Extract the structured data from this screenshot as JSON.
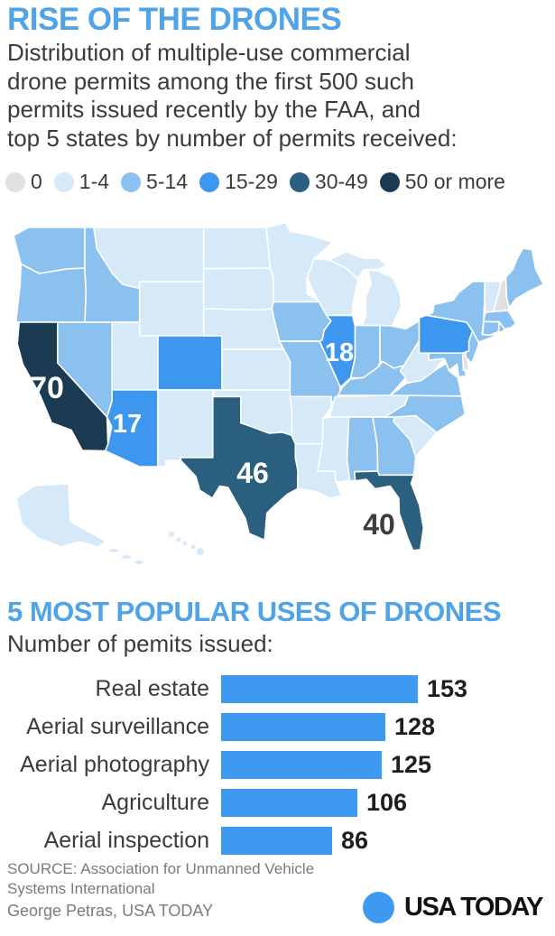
{
  "header": {
    "title": "RISE OF THE DRONES",
    "subtitle": "Distribution of multiple-use commercial\ndrone permits among the first 500 such\npermits issued recently by the FAA, and\ntop 5 states by number of permits received:"
  },
  "theme": {
    "headline_blue": "#4FA3E9",
    "bar_blue": "#3D9AF0",
    "text_dark": "#3B3B3B",
    "text_gray": "#7B7B7B",
    "value_black": "#1E1E1E"
  },
  "chart_data": [
    {
      "type": "heatmap",
      "subtype": "us-state-choropleth",
      "title": "RISE OF THE DRONES",
      "description": "Distribution of multiple-use commercial drone permits among the first 500 such permits issued recently by the FAA, and top 5 states by number of permits received:",
      "legend_position": "top",
      "legend": [
        {
          "label": "0",
          "color": "#E1E1E1"
        },
        {
          "label": "1-4",
          "color": "#D5E9F9"
        },
        {
          "label": "5-14",
          "color": "#8AC1EF"
        },
        {
          "label": "15-29",
          "color": "#3E97EF"
        },
        {
          "label": "30-49",
          "color": "#2B5F80"
        },
        {
          "label": "50 or more",
          "color": "#1A3B52"
        }
      ],
      "state_buckets": {
        "WA": "5-14",
        "OR": "5-14",
        "CA": "50 or more",
        "NV": "5-14",
        "ID": "5-14",
        "MT": "1-4",
        "WY": "1-4",
        "UT": "1-4",
        "CO": "15-29",
        "AZ": "15-29",
        "NM": "1-4",
        "ND": "1-4",
        "SD": "1-4",
        "NE": "1-4",
        "KS": "1-4",
        "OK": "1-4",
        "TX": "30-49",
        "MN": "1-4",
        "IA": "5-14",
        "MO": "5-14",
        "AR": "1-4",
        "LA": "1-4",
        "WI": "1-4",
        "IL": "15-29",
        "MI": "1-4",
        "IN": "5-14",
        "OH": "5-14",
        "KY": "5-14",
        "TN": "1-4",
        "MS": "1-4",
        "AL": "5-14",
        "GA": "5-14",
        "FL": "30-49",
        "SC": "1-4",
        "NC": "5-14",
        "VA": "5-14",
        "WV": "1-4",
        "MD": "5-14",
        "DE": "0",
        "NJ": "5-14",
        "PA": "15-29",
        "NY": "5-14",
        "CT": "5-14",
        "RI": "5-14",
        "MA": "5-14",
        "VT": "1-4",
        "NH": "0",
        "ME": "5-14",
        "AK": "1-4",
        "HI": "1-4"
      },
      "value_labels": {
        "CA": "70",
        "TX": "46",
        "FL": "40",
        "IL": "18",
        "AZ": "17"
      }
    },
    {
      "type": "bar",
      "orientation": "horizontal",
      "title": "5 MOST POPULAR USES OF DRONES",
      "subtitle": "Number of pemits issued:",
      "categories": [
        "Real estate",
        "Aerial surveillance",
        "Aerial photography",
        "Agriculture",
        "Aerial inspection"
      ],
      "values": [
        153,
        128,
        125,
        106,
        86
      ],
      "xlim": [
        0,
        160
      ],
      "bar_color": "#3D9AF0",
      "grid": false
    }
  ],
  "footer": {
    "source": "SOURCE: Association for Unmanned Vehicle\nSystems International",
    "byline": "George Petras, USA TODAY",
    "logo_text": "USA TODAY",
    "logo_color": "#3D9AF0"
  }
}
